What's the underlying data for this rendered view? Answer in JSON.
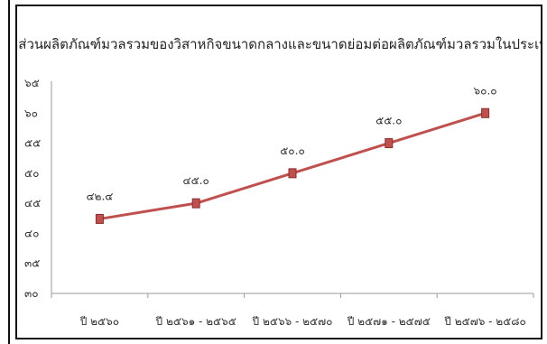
{
  "chart_data": {
    "type": "line",
    "title": "สัดส่วนผลิตภัณฑ์มวลรวมของวิสาหกิจขนาดกลางและขนาดย่อมต่อผลิตภัณฑ์มวลรวมในประเทศ",
    "categories": [
      "ปี ๒๕๖๐",
      "ปี ๒๕๖๑ - ๒๕๖๕",
      "ปี ๒๕๖๖ - ๒๕๗๐",
      "ปี ๒๕๗๑ - ๒๕๗๕",
      "ปี ๒๕๗๖ - ๒๕๘๐"
    ],
    "values": [
      42.4,
      45.0,
      50.0,
      55.0,
      60.0
    ],
    "value_labels": [
      "๔๒.๔",
      "๔๕.๐",
      "๕๐.๐",
      "๕๕.๐",
      "๖๐.๐"
    ],
    "yticks": [
      30,
      35,
      40,
      45,
      50,
      55,
      60,
      65
    ],
    "ytick_labels": [
      "๓๐",
      "๓๕",
      "๔๐",
      "๔๕",
      "๕๐",
      "๕๕",
      "๖๐",
      "๖๕"
    ],
    "ylim": [
      30,
      65
    ],
    "grid": false,
    "legend": "none",
    "line_color": "#c0504d",
    "marker_color": "#c0504d"
  }
}
